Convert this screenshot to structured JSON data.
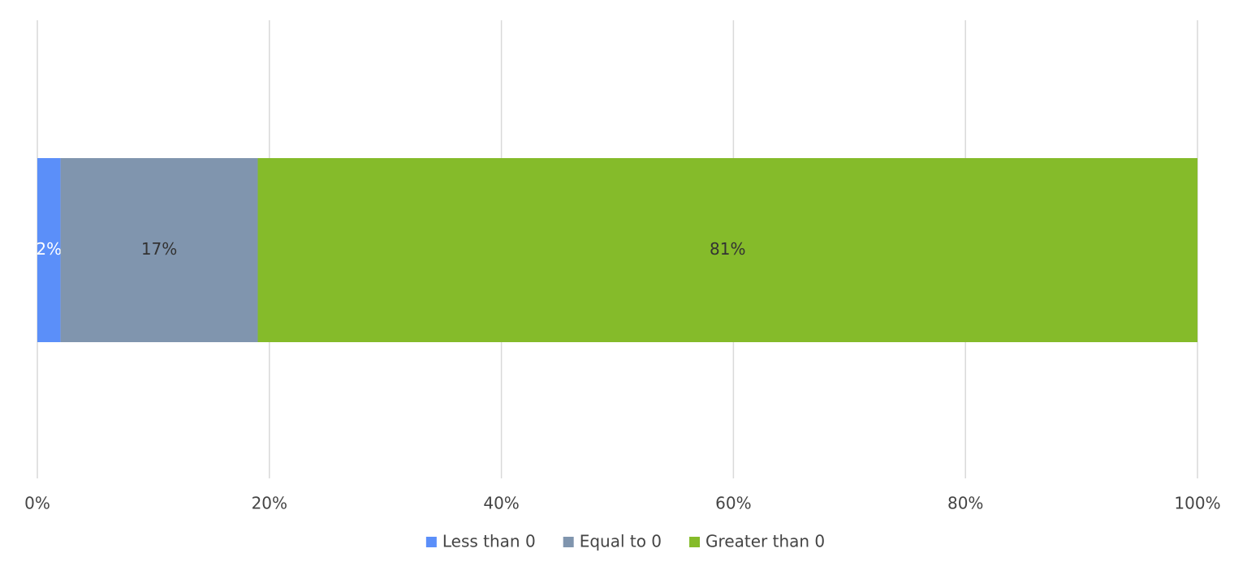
{
  "chart_data": {
    "type": "bar",
    "series": [
      {
        "name": "Less than 0",
        "color": "#5b8ff9",
        "label_color": "#ffffff",
        "values": [
          2
        ],
        "value_labels": [
          "2%"
        ]
      },
      {
        "name": "Equal to 0",
        "color": "#8095ae",
        "label_color": "#333333",
        "values": [
          17
        ],
        "value_labels": [
          "17%"
        ]
      },
      {
        "name": "Greater than 0",
        "color": "#85bb2a",
        "label_color": "#333333",
        "values": [
          81
        ],
        "value_labels": [
          "81%"
        ]
      }
    ],
    "xlim": [
      0,
      100
    ],
    "xticks": [
      {
        "value": 0,
        "label": "0%"
      },
      {
        "value": 20,
        "label": "20%"
      },
      {
        "value": 40,
        "label": "40%"
      },
      {
        "value": 60,
        "label": "60%"
      },
      {
        "value": 80,
        "label": "80%"
      },
      {
        "value": 100,
        "label": "100%"
      }
    ],
    "grid": true
  }
}
